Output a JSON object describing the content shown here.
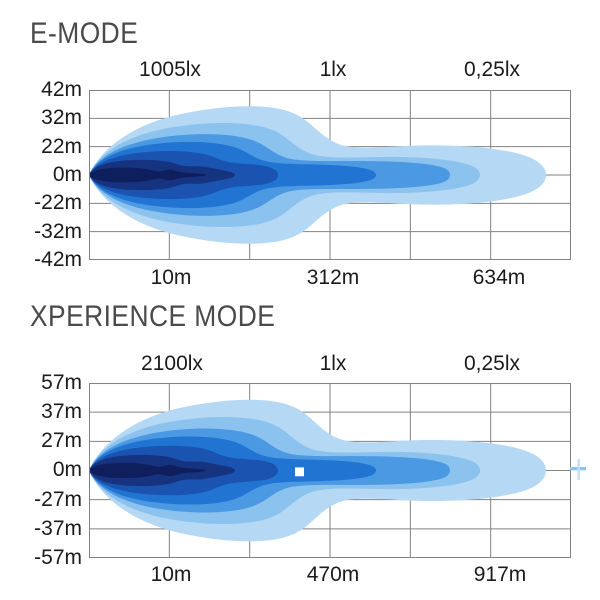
{
  "charts": [
    {
      "title": "E-MODE",
      "lux_labels": [
        "1005lx",
        "1lx",
        "0,25lx"
      ],
      "y_ticks": [
        "42m",
        "32m",
        "22m",
        "0m",
        "-22m",
        "-32m",
        "-42m"
      ],
      "x_ticks": [
        "10m",
        "312m",
        "634m"
      ]
    },
    {
      "title": "XPERIENCE MODE",
      "lux_labels": [
        "2100lx",
        "1lx",
        "0,25lx"
      ],
      "y_ticks": [
        "57m",
        "37m",
        "27m",
        "0m",
        "-27m",
        "-37m",
        "-57m"
      ],
      "x_ticks": [
        "10m",
        "470m",
        "917m"
      ]
    }
  ],
  "colors": {
    "beam_palette": [
      "#b5d8f4",
      "#8cc2ee",
      "#4b99e2",
      "#2174d2",
      "#1a53b0",
      "#16337f",
      "#0f1f5e"
    ],
    "grid": "#828282",
    "tick_text": "#1b1b1b",
    "title_text": "#4a4a4a",
    "marker": "#ffffff",
    "edge_tick": "#8fc4ee",
    "edge_tick_light": "#c3def5"
  },
  "chart_data": [
    {
      "type": "area",
      "chart_kind": "isolux-beam-pattern",
      "title": "E-MODE",
      "x_axis": {
        "unit": "m",
        "tick_labels": [
          "10m",
          "312m",
          "634m"
        ],
        "tick_values": [
          10,
          312,
          634
        ]
      },
      "y_axis": {
        "unit": "m",
        "tick_labels": [
          "42m",
          "32m",
          "22m",
          "0m",
          "-22m",
          "-32m",
          "-42m"
        ],
        "tick_values": [
          42,
          32,
          22,
          0,
          -22,
          -32,
          -42
        ]
      },
      "isolux_annotations": [
        {
          "lux": "1005lx",
          "at_distance": "10m"
        },
        {
          "lux": "1lx",
          "at_distance": "312m"
        },
        {
          "lux": "0,25lx",
          "at_distance": "634m"
        }
      ],
      "contour_levels": 7,
      "grid": "on",
      "legend": "none"
    },
    {
      "type": "area",
      "chart_kind": "isolux-beam-pattern",
      "title": "XPERIENCE MODE",
      "x_axis": {
        "unit": "m",
        "tick_labels": [
          "10m",
          "470m",
          "917m"
        ],
        "tick_values": [
          10,
          470,
          917
        ]
      },
      "y_axis": {
        "unit": "m",
        "tick_labels": [
          "57m",
          "37m",
          "27m",
          "0m",
          "-27m",
          "-37m",
          "-57m"
        ],
        "tick_values": [
          57,
          37,
          27,
          0,
          -27,
          -37,
          -57
        ]
      },
      "isolux_annotations": [
        {
          "lux": "2100lx",
          "at_distance": "10m"
        },
        {
          "lux": "1lx",
          "at_distance": "470m"
        },
        {
          "lux": "0,25lx",
          "at_distance": "917m"
        }
      ],
      "contour_levels": 7,
      "grid": "on",
      "legend": "none",
      "marker": {
        "shape": "white-square",
        "near_distance_label": "470m",
        "at_width_m": 0
      }
    }
  ]
}
